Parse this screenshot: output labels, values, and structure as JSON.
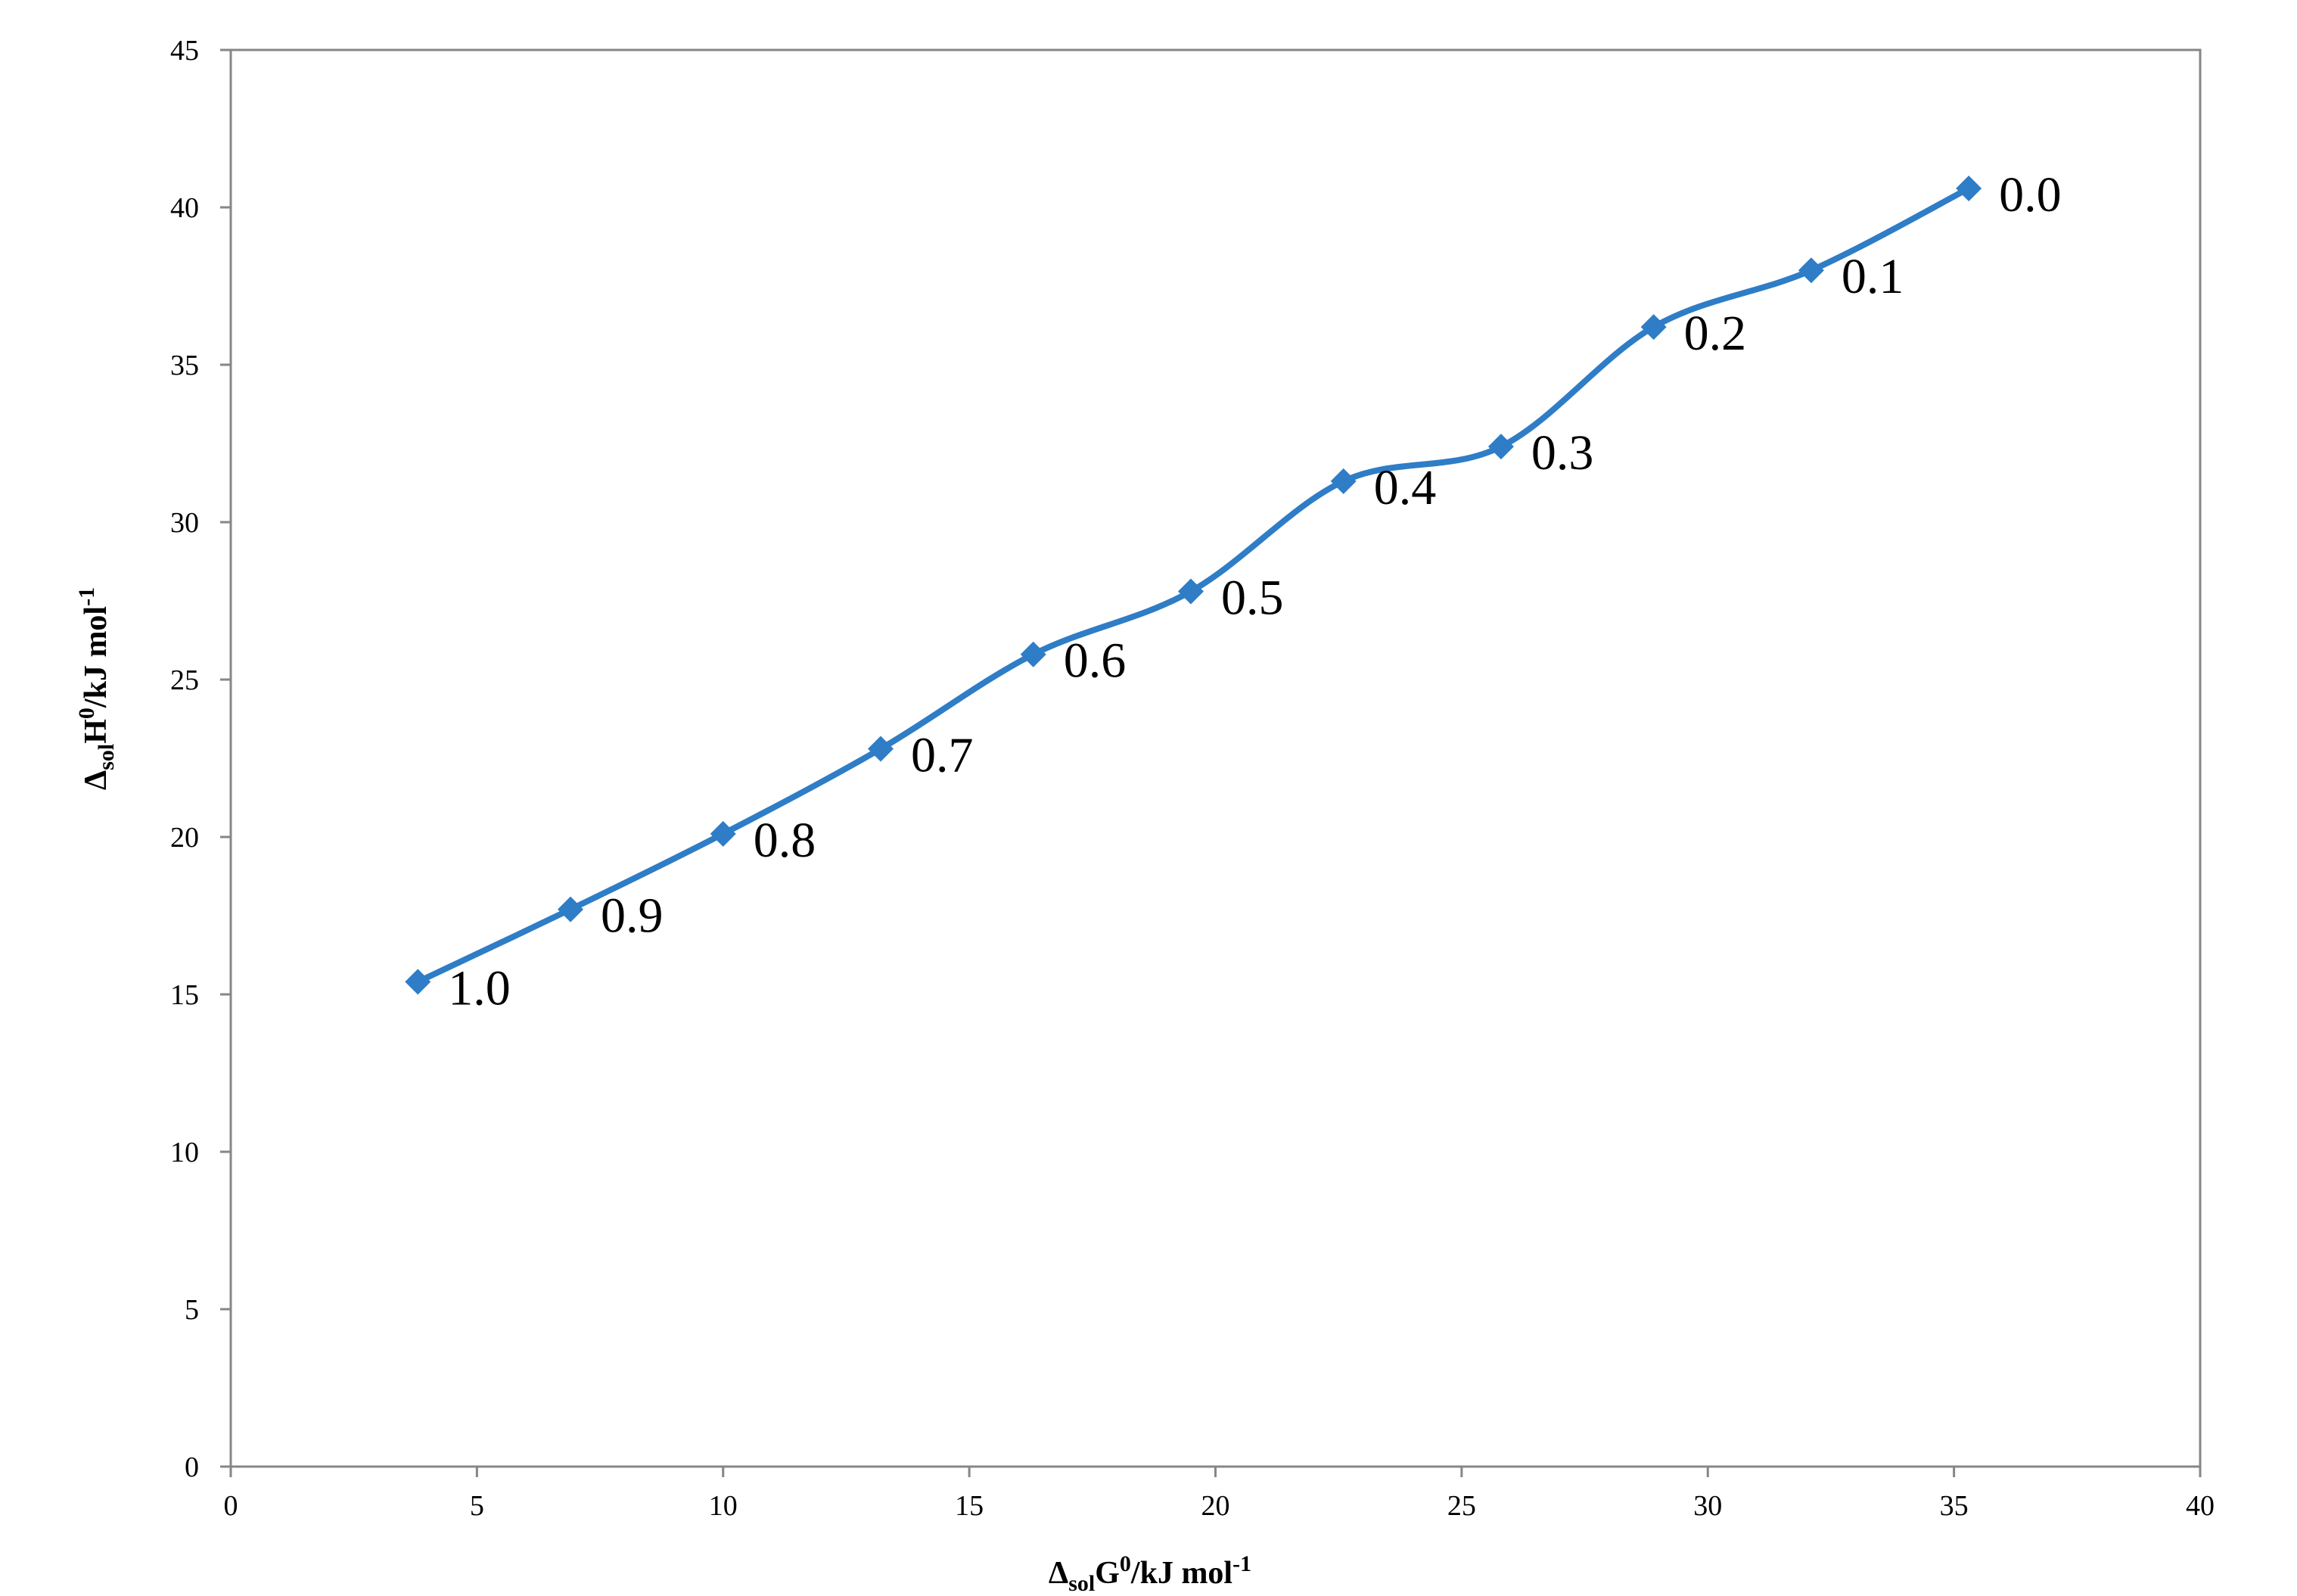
{
  "chart_data": {
    "type": "line",
    "title": "",
    "xlabel": {
      "delta": "Δ",
      "sub": "sol",
      "main": "G",
      "sup": "0",
      "unit": "/kJ mol",
      "unit_sup": "-1"
    },
    "ylabel": {
      "delta": "Δ",
      "sub": "sol",
      "main": "H",
      "sup": "0",
      "unit": "/kJ mol",
      "unit_sup": "-1"
    },
    "xlim": [
      0,
      40
    ],
    "ylim": [
      0,
      45
    ],
    "xticks": [
      "0",
      "5",
      "10",
      "15",
      "20",
      "25",
      "30",
      "35",
      "40"
    ],
    "yticks": [
      "0",
      "5",
      "10",
      "15",
      "20",
      "25",
      "30",
      "35",
      "40",
      "45"
    ],
    "grid": false,
    "series_color": "#2E7DC6",
    "series": [
      {
        "marker": "diamond",
        "smooth": true,
        "x": [
          3.8,
          6.9,
          10.0,
          13.2,
          16.3,
          19.5,
          22.6,
          25.8,
          28.9,
          32.1,
          35.3
        ],
        "y": [
          15.4,
          17.7,
          20.1,
          22.8,
          25.8,
          27.8,
          31.3,
          32.4,
          36.2,
          38.0,
          40.6
        ],
        "labels": [
          "1.0",
          "0.9",
          "0.8",
          "0.7",
          "0.6",
          "0.5",
          "0.4",
          "0.3",
          "0.2",
          "0.1",
          "0.0"
        ]
      }
    ]
  }
}
